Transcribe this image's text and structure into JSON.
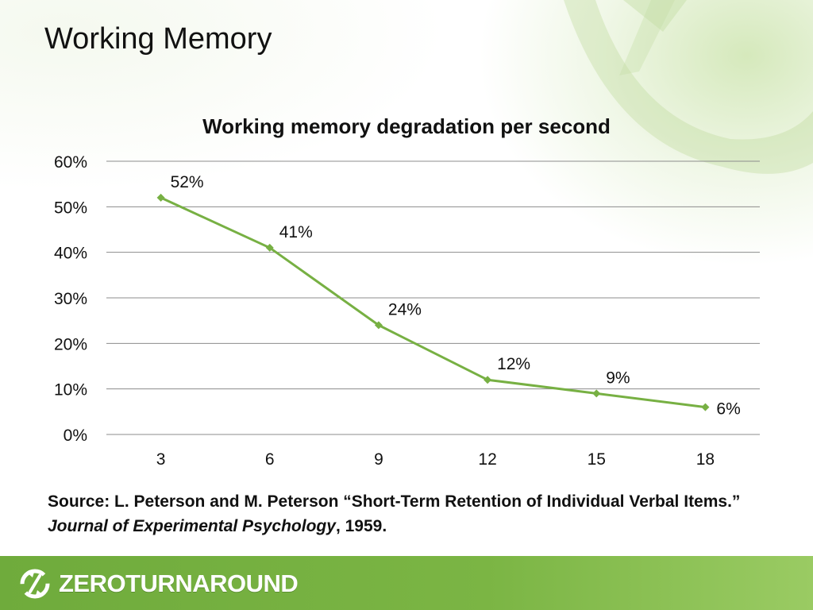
{
  "slide": {
    "title": "Working Memory"
  },
  "chart_data": {
    "type": "line",
    "title": "Working memory degradation per second",
    "xlabel": "",
    "ylabel": "",
    "x": [
      "3",
      "6",
      "9",
      "12",
      "15",
      "18"
    ],
    "series": [
      {
        "values": [
          52,
          41,
          24,
          12,
          9,
          6
        ],
        "labels": [
          "52%",
          "41%",
          "24%",
          "12%",
          "9%",
          "6%"
        ]
      }
    ],
    "ylim": [
      0,
      60
    ],
    "yticks": [
      0,
      10,
      20,
      30,
      40,
      50,
      60
    ],
    "ytick_labels": [
      "0%",
      "10%",
      "20%",
      "30%",
      "40%",
      "50%",
      "60%"
    ],
    "grid": true,
    "legend": "none",
    "colors": {
      "line": "#77b043",
      "grid": "#8c8c8c"
    }
  },
  "source": {
    "prefix": "Source: L. Peterson and M. Peterson “Short-Term Retention of Individual Verbal Items.” ",
    "journal": "Journal of Experimental Psychology",
    "suffix": ", 1959."
  },
  "footer": {
    "logo_text": "ZEROTURNAROUND",
    "logo_icon": "refresh-arrows-icon",
    "bar_color": "#77b043"
  }
}
